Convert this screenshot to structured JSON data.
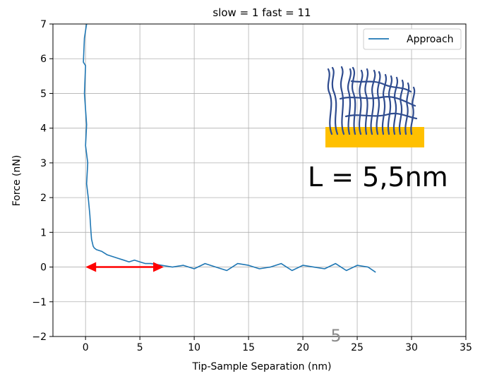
{
  "chart_data": {
    "type": "line",
    "title": "slow = 1 fast = 11",
    "xlabel": "Tip-Sample Separation (nm)",
    "ylabel": "Force (nN)",
    "xlim": [
      -3,
      35
    ],
    "ylim": [
      -2,
      7
    ],
    "x_ticks": [
      0,
      5,
      10,
      15,
      20,
      25,
      30,
      35
    ],
    "y_ticks": [
      -2,
      -1,
      0,
      1,
      2,
      3,
      4,
      5,
      6,
      7
    ],
    "grid": true,
    "legend_position": "top-right",
    "series": [
      {
        "name": "Approach",
        "color": "#1f77b4",
        "x": [
          0.1,
          -0.1,
          -0.2,
          0.0,
          -0.1,
          0.1,
          0.0,
          0.2,
          0.1,
          0.25,
          0.4,
          0.5,
          0.55,
          0.7,
          0.8,
          1.0,
          1.5,
          2.0,
          2.5,
          3.0,
          3.5,
          4.0,
          4.5,
          5.0,
          5.5,
          6.0,
          7.0,
          8.0,
          9.0,
          10.0,
          11.0,
          12.0,
          13.0,
          14.0,
          15.0,
          16.0,
          17.0,
          18.0,
          19.0,
          20.0,
          21.0,
          22.0,
          23.0,
          24.0,
          25.0,
          26.0,
          26.7
        ],
        "y": [
          7.0,
          6.6,
          5.9,
          5.8,
          5.0,
          4.1,
          3.5,
          3.0,
          2.4,
          2.0,
          1.5,
          1.0,
          0.8,
          0.6,
          0.55,
          0.5,
          0.45,
          0.35,
          0.3,
          0.25,
          0.2,
          0.15,
          0.2,
          0.15,
          0.1,
          0.1,
          0.05,
          0.0,
          0.05,
          -0.05,
          0.1,
          0.0,
          -0.1,
          0.1,
          0.05,
          -0.05,
          0.0,
          0.1,
          -0.1,
          0.05,
          0.0,
          -0.05,
          0.1,
          -0.1,
          0.05,
          0.0,
          -0.15
        ]
      }
    ],
    "annotations": {
      "equation": "L = 5,5nm",
      "arrow_x": [
        0,
        7.2
      ],
      "arrow_y": 0,
      "arrow_color": "#ff0000",
      "substrate_color": "#ffc000",
      "brush_color": "#2f4c8f",
      "corner_number": "5"
    }
  }
}
